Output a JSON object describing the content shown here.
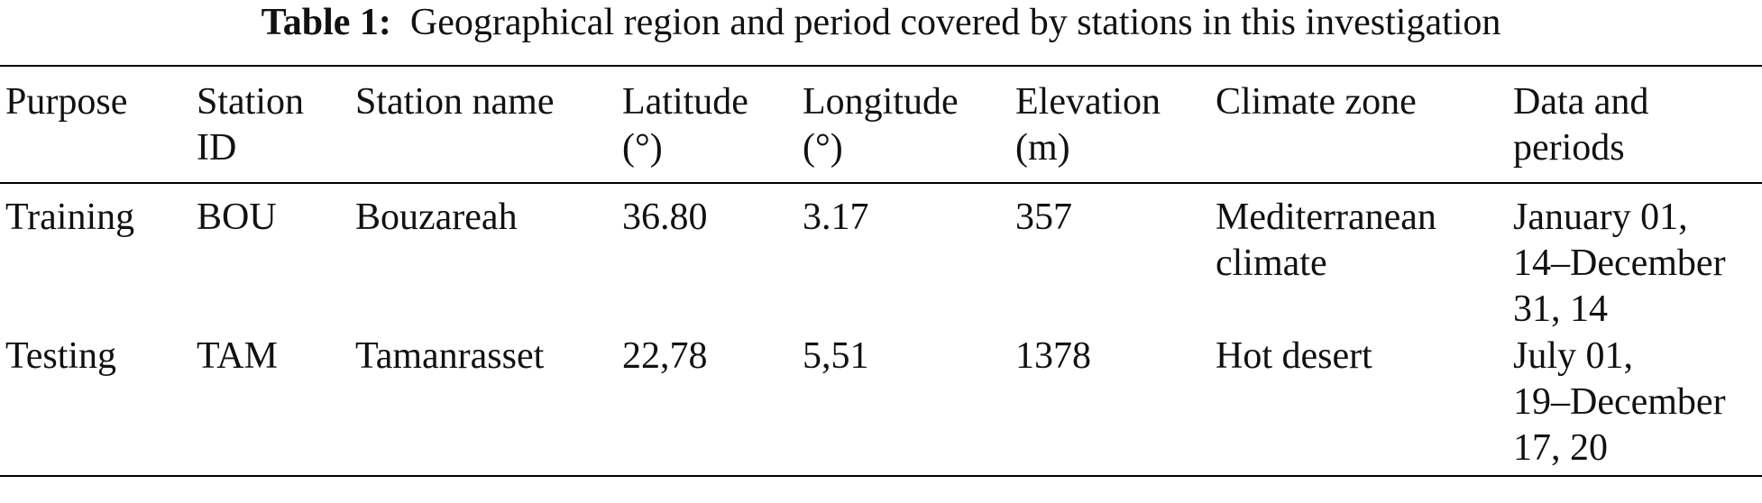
{
  "caption": {
    "label": "Table 1:",
    "text": "Geographical region and period covered by stations in this investigation"
  },
  "table": {
    "headers": [
      [
        "Purpose"
      ],
      [
        "Station",
        "ID"
      ],
      [
        "Station name"
      ],
      [
        "Latitude",
        "(°)"
      ],
      [
        "Longitude",
        "(°)"
      ],
      [
        "Elevation",
        "(m)"
      ],
      [
        "Climate zone"
      ],
      [
        "Data and",
        "periods"
      ]
    ],
    "rows": [
      {
        "purpose": "Training",
        "station_id": "BOU",
        "station_name": "Bouzareah",
        "latitude": "36.80",
        "longitude": "3.17",
        "elevation": "357",
        "climate_zone": [
          "Mediterranean",
          "climate"
        ],
        "periods": [
          "January 01,",
          "14–December",
          "31, 14"
        ]
      },
      {
        "purpose": "Testing",
        "station_id": "TAM",
        "station_name": "Tamanrasset",
        "latitude": "22,78",
        "longitude": "5,51",
        "elevation": "1378",
        "climate_zone": [
          "Hot desert"
        ],
        "periods": [
          "July 01,",
          "19–December",
          "17, 20"
        ]
      }
    ]
  }
}
